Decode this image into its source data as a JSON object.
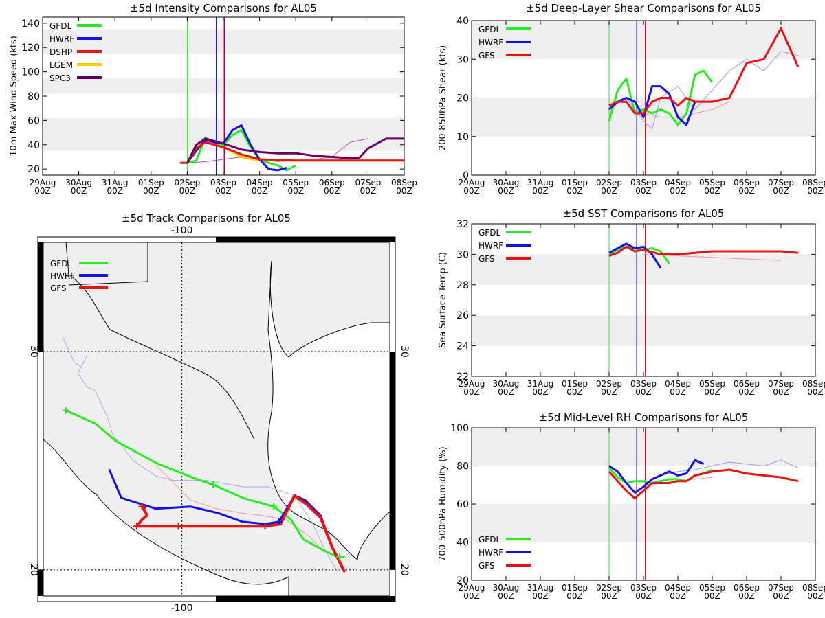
{
  "colors": {
    "GFDL": "#22ee22",
    "HWRF": "#1111ee",
    "DSHP": "#ee1111",
    "LGEM": "#ffcc00",
    "SPC3": "#660066",
    "GFS": "#ee1111"
  },
  "shared_x_ticks": [
    {
      "day": "29Aug",
      "hour": "00Z"
    },
    {
      "day": "30Aug",
      "hour": "00Z"
    },
    {
      "day": "31Aug",
      "hour": "00Z"
    },
    {
      "day": "01Sep",
      "hour": "00Z"
    },
    {
      "day": "02Sep",
      "hour": "00Z"
    },
    {
      "day": "03Sep",
      "hour": "00Z"
    },
    {
      "day": "04Sep",
      "hour": "00Z"
    },
    {
      "day": "05Sep",
      "hour": "00Z"
    },
    {
      "day": "06Sep",
      "hour": "00Z"
    },
    {
      "day": "07Sep",
      "hour": "00Z"
    },
    {
      "day": "08Sep",
      "hour": "00Z"
    }
  ],
  "chart_data": [
    {
      "id": "intensity",
      "type": "line",
      "title": "±5d Intensity Comparisons for AL05",
      "ylabel": "10m Max Wind Speed (kts)",
      "xlabel": "",
      "xlim": [
        0,
        10
      ],
      "ylim": [
        15,
        145
      ],
      "yticks": [
        20,
        40,
        60,
        80,
        100,
        120,
        140
      ],
      "bands": [
        [
          35,
          62
        ],
        [
          82,
          95
        ],
        [
          115,
          135
        ]
      ],
      "vlines": [
        {
          "x": 4.0,
          "color": "#22ee22"
        },
        {
          "x": 4.8,
          "color": "#1111ee"
        },
        {
          "x": 5.0,
          "color": "#ee1111"
        },
        {
          "x": 5.03,
          "color": "#660066"
        }
      ],
      "legend": [
        "GFDL",
        "HWRF",
        "DSHP",
        "LGEM",
        "SPC3"
      ],
      "series": [
        {
          "name": "observed",
          "color": "#cc44cc",
          "width": 1,
          "x": [
            4.0,
            4.5,
            5.0,
            5.5,
            6.0,
            6.5,
            7.0,
            7.5,
            8.0,
            8.5,
            9.0
          ],
          "y": [
            25,
            26,
            28,
            30,
            28,
            26,
            27,
            28,
            30,
            42,
            45
          ]
        },
        {
          "name": "LGEM",
          "color": "#ffcc00",
          "width": 3,
          "x": [
            4.0,
            4.25,
            4.5,
            4.75,
            5.0,
            5.5,
            6.0,
            7.0,
            8.0,
            10.0
          ],
          "y": [
            25,
            38,
            44,
            41,
            38,
            30,
            27,
            27,
            27,
            27
          ]
        },
        {
          "name": "GFDL",
          "color": "#22ee22",
          "width": 3,
          "x": [
            4.0,
            4.25,
            4.5,
            4.75,
            5.0,
            5.25,
            5.5,
            5.75,
            6.0,
            6.25,
            6.5,
            6.75,
            7.0
          ],
          "y": [
            25,
            27,
            46,
            42,
            40,
            48,
            52,
            38,
            28,
            25,
            23,
            19,
            23
          ]
        },
        {
          "name": "HWRF",
          "color": "#1111ee",
          "width": 3,
          "x": [
            4.0,
            4.25,
            4.5,
            4.75,
            5.0,
            5.25,
            5.5,
            5.75,
            6.0,
            6.25,
            6.5,
            6.75
          ],
          "y": [
            25,
            35,
            44,
            42,
            41,
            52,
            56,
            40,
            28,
            20,
            19,
            21
          ]
        },
        {
          "name": "DSHP",
          "color": "#ee1111",
          "width": 3,
          "x": [
            3.8,
            4.0,
            4.25,
            4.5,
            4.75,
            5.0,
            5.5,
            6.0,
            7.0,
            8.0,
            9.0,
            10.0
          ],
          "y": [
            25,
            25,
            37,
            42,
            40,
            38,
            32,
            28,
            27,
            27,
            27,
            27
          ]
        },
        {
          "name": "SPC3",
          "color": "#660066",
          "width": 3,
          "x": [
            4.0,
            4.25,
            4.5,
            4.75,
            5.0,
            5.5,
            6.0,
            6.5,
            7.0,
            7.5,
            8.0,
            8.5,
            8.75,
            9.0,
            9.5,
            10.0
          ],
          "y": [
            25,
            40,
            45,
            43,
            41,
            36,
            34,
            33,
            33,
            31,
            30,
            29,
            29,
            37,
            45,
            45
          ]
        }
      ]
    },
    {
      "id": "shear",
      "type": "line",
      "title": "±5d Deep-Layer Shear Comparisons for AL05",
      "ylabel": "200-850hPa Shear (kts)",
      "xlabel": "",
      "xlim": [
        0,
        10
      ],
      "ylim": [
        0,
        40
      ],
      "yticks": [
        0,
        10,
        20,
        30,
        40
      ],
      "bands": [
        [
          10,
          20
        ],
        [
          30,
          40
        ]
      ],
      "vlines": [
        {
          "x": 4.0,
          "color": "#22ee22"
        },
        {
          "x": 4.8,
          "color": "#1111ee"
        },
        {
          "x": 5.05,
          "color": "#ee1111"
        }
      ],
      "legend": [
        "GFDL",
        "HWRF",
        "GFS"
      ],
      "series": [
        {
          "name": "observed",
          "color": "#9999ee",
          "width": 1,
          "x": [
            4.0,
            4.5,
            5.0,
            5.25,
            5.5,
            6.0,
            6.5,
            7.0,
            7.5,
            8.0,
            8.5,
            9.0,
            9.5
          ],
          "y": [
            17,
            20,
            14,
            12,
            20,
            23,
            17,
            22,
            27,
            30,
            27,
            32,
            31
          ]
        },
        {
          "name": "GFS-faint",
          "color": "#ee9999",
          "width": 1,
          "x": [
            5.0,
            5.5,
            6.0,
            6.5,
            7.0,
            7.5
          ],
          "y": [
            16,
            15,
            15,
            16,
            17,
            19
          ]
        },
        {
          "name": "GFDL",
          "color": "#22ee22",
          "width": 3,
          "x": [
            4.0,
            4.25,
            4.5,
            4.75,
            5.0,
            5.25,
            5.5,
            5.75,
            6.0,
            6.25,
            6.5,
            6.75,
            7.0
          ],
          "y": [
            14,
            22,
            25,
            16,
            17,
            16,
            17,
            16,
            13,
            16,
            26,
            27,
            24
          ]
        },
        {
          "name": "HWRF",
          "color": "#1111ee",
          "width": 3,
          "x": [
            4.0,
            4.25,
            4.5,
            4.75,
            5.0,
            5.25,
            5.5,
            5.75,
            6.0,
            6.25,
            6.5
          ],
          "y": [
            17,
            19,
            20,
            19,
            15,
            23,
            23,
            21,
            15,
            13,
            19
          ]
        },
        {
          "name": "GFS",
          "color": "#ee1111",
          "width": 3,
          "x": [
            4.0,
            4.25,
            4.5,
            4.75,
            5.0,
            5.25,
            5.5,
            5.75,
            6.0,
            6.25,
            6.5,
            7.0,
            7.5,
            8.0,
            8.5,
            9.0,
            9.5
          ],
          "y": [
            18,
            19,
            19,
            16,
            16,
            19,
            20,
            20,
            18,
            20,
            19,
            19,
            20,
            29,
            30,
            38,
            28
          ]
        }
      ]
    },
    {
      "id": "sst",
      "type": "line",
      "title": "±5d SST Comparisons for AL05",
      "ylabel": "Sea Surface Temp (C)",
      "xlabel": "",
      "xlim": [
        0,
        10
      ],
      "ylim": [
        22,
        32
      ],
      "yticks": [
        22,
        24,
        26,
        28,
        30,
        32
      ],
      "bands": [
        [
          24,
          26
        ],
        [
          28,
          30
        ]
      ],
      "vlines": [
        {
          "x": 4.0,
          "color": "#22ee22"
        },
        {
          "x": 4.8,
          "color": "#1111ee"
        },
        {
          "x": 5.05,
          "color": "#ee1111"
        }
      ],
      "legend": [
        "GFDL",
        "HWRF",
        "GFS"
      ],
      "series": [
        {
          "name": "GFS-faint",
          "color": "#ee9999",
          "width": 1,
          "x": [
            5.0,
            6.0,
            7.0,
            8.0,
            9.0
          ],
          "y": [
            30.0,
            29.9,
            29.8,
            29.7,
            29.6
          ]
        },
        {
          "name": "GFDL",
          "color": "#22ee22",
          "width": 3,
          "x": [
            4.0,
            4.25,
            4.5,
            4.75,
            5.0,
            5.25,
            5.5,
            5.75
          ],
          "y": [
            30.0,
            30.3,
            30.5,
            30.4,
            30.3,
            30.4,
            30.2,
            29.4
          ]
        },
        {
          "name": "HWRF",
          "color": "#1111ee",
          "width": 3,
          "x": [
            4.0,
            4.25,
            4.5,
            4.75,
            5.0,
            5.25,
            5.5
          ],
          "y": [
            30.1,
            30.4,
            30.7,
            30.4,
            30.5,
            30.0,
            29.1
          ]
        },
        {
          "name": "GFS",
          "color": "#ee1111",
          "width": 3,
          "x": [
            4.0,
            4.25,
            4.5,
            4.75,
            5.0,
            5.5,
            6.0,
            6.5,
            7.0,
            7.5,
            8.0,
            8.5,
            9.0,
            9.5
          ],
          "y": [
            29.9,
            30.1,
            30.5,
            30.2,
            30.3,
            30.0,
            30.0,
            30.1,
            30.2,
            30.2,
            30.2,
            30.2,
            30.2,
            30.1
          ]
        }
      ]
    },
    {
      "id": "rh",
      "type": "line",
      "title": "±5d Mid-Level RH Comparisons for AL05",
      "ylabel": "700-500hPa Humidity (%)",
      "xlabel": "",
      "xlim": [
        0,
        10
      ],
      "ylim": [
        20,
        100
      ],
      "yticks": [
        20,
        40,
        60,
        80,
        100
      ],
      "bands": [
        [
          40,
          60
        ],
        [
          80,
          100
        ]
      ],
      "vlines": [
        {
          "x": 4.0,
          "color": "#22ee22"
        },
        {
          "x": 4.8,
          "color": "#1111ee"
        },
        {
          "x": 5.05,
          "color": "#ee1111"
        }
      ],
      "legend": [
        "GFDL",
        "HWRF",
        "GFS"
      ],
      "series": [
        {
          "name": "observed",
          "color": "#9999ee",
          "width": 1,
          "x": [
            5.5,
            6.0,
            6.5,
            7.0,
            7.5,
            8.0,
            8.5,
            9.0,
            9.5
          ],
          "y": [
            75,
            77,
            78,
            80,
            82,
            81,
            80,
            83,
            79
          ]
        },
        {
          "name": "GFS-faint",
          "color": "#ee9999",
          "width": 1,
          "x": [
            5.0,
            5.5,
            6.0,
            6.5,
            7.0
          ],
          "y": [
            70,
            71,
            72,
            73,
            74
          ]
        },
        {
          "name": "GFDL",
          "color": "#22ee22",
          "width": 3,
          "x": [
            4.0,
            4.25,
            4.5,
            4.75,
            5.0,
            5.25,
            5.5,
            5.75,
            6.0,
            6.25,
            6.5,
            6.75,
            7.0
          ],
          "y": [
            79,
            74,
            71,
            72,
            72,
            71,
            72,
            73,
            73,
            72,
            75,
            76,
            78
          ]
        },
        {
          "name": "HWRF",
          "color": "#1111ee",
          "width": 3,
          "x": [
            4.0,
            4.25,
            4.5,
            4.75,
            5.0,
            5.25,
            5.5,
            5.75,
            6.0,
            6.25,
            6.5,
            6.75
          ],
          "y": [
            80,
            77,
            71,
            66,
            69,
            73,
            75,
            77,
            75,
            76,
            83,
            81
          ]
        },
        {
          "name": "GFS",
          "color": "#ee1111",
          "width": 3,
          "x": [
            4.0,
            4.25,
            4.5,
            4.75,
            5.0,
            5.25,
            5.5,
            5.75,
            6.0,
            6.25,
            6.5,
            7.0,
            7.5,
            8.0,
            8.5,
            9.0,
            9.5
          ],
          "y": [
            77,
            72,
            67,
            63,
            67,
            71,
            71,
            71,
            72,
            72,
            75,
            77,
            78,
            76,
            75,
            74,
            72
          ]
        }
      ]
    },
    {
      "id": "track",
      "type": "line",
      "title": "±5d Track Comparisons for AL05",
      "xlim": [
        -108,
        -88
      ],
      "ylim": [
        18.8,
        35
      ],
      "lon_label": "-100",
      "lat_labels": [
        "30",
        "20"
      ],
      "legend": [
        "GFDL",
        "HWRF",
        "GFS"
      ],
      "series": [
        {
          "name": "observed",
          "color": "#aaaaee",
          "width": 1,
          "lon": [
            -106.9,
            -106.2,
            -105.8,
            -105.5,
            -106.0,
            -105.5,
            -105.0,
            -104.3,
            -104.0,
            -102.8,
            -101.5,
            -100.5,
            -98.6,
            -96.5,
            -95.0,
            -93.5,
            -92.5,
            -91.8,
            -91.0
          ],
          "lat": [
            30.7,
            29.5,
            29.3,
            29.8,
            29.0,
            28.4,
            28.2,
            27.0,
            26.2,
            25.0,
            24.3,
            24.1,
            24.1,
            23.8,
            23.8,
            23.4,
            22.2,
            21.0,
            19.9
          ]
        },
        {
          "name": "GFS-faint",
          "color": "#ee9999",
          "width": 1,
          "lon": [
            -101.5,
            -100.5,
            -99.5,
            -98.0,
            -96.5,
            -95.5,
            -94.0,
            -92.6,
            -91.8
          ],
          "lat": [
            24.8,
            24.0,
            23.2,
            22.8,
            22.6,
            22.5,
            22.3,
            21.5,
            20.8
          ]
        },
        {
          "name": "GFDL",
          "color": "#22ee22",
          "width": 3,
          "lon": [
            -106.7,
            -105.0,
            -103.8,
            -101.5,
            -99.3,
            -98.2,
            -96.5,
            -94.7,
            -93.7,
            -93.0,
            -91.6,
            -91.0,
            -90.6
          ],
          "lat": [
            27.3,
            26.7,
            25.9,
            24.9,
            24.2,
            23.9,
            23.3,
            22.9,
            22.3,
            21.4,
            20.8,
            20.6,
            20.6
          ]
        },
        {
          "name": "HWRF",
          "color": "#1111ee",
          "width": 3,
          "lon": [
            -104.2,
            -103.5,
            -101.5,
            -99.5,
            -97.9,
            -96.5,
            -95.2,
            -94.4,
            -93.5,
            -92.9,
            -92.0,
            -91.3,
            -90.7
          ],
          "lat": [
            24.6,
            23.3,
            22.8,
            22.9,
            22.6,
            22.2,
            22.1,
            22.2,
            23.4,
            23.2,
            22.5,
            21.0,
            20.0
          ]
        },
        {
          "name": "GFS",
          "color": "#ee1111",
          "width": 4,
          "lon": [
            -102.1,
            -102.3,
            -102.0,
            -102.3,
            -102.6,
            -102.6,
            -100.2,
            -98.2,
            -96.5,
            -95.2,
            -94.3,
            -93.5,
            -92.8,
            -92.0,
            -91.3,
            -90.6
          ],
          "lat": [
            22.8,
            22.9,
            22.5,
            22.3,
            22.0,
            22.0,
            22.0,
            22.0,
            22.0,
            22.0,
            22.1,
            23.4,
            23.0,
            22.4,
            21.0,
            19.9
          ]
        }
      ],
      "markers": [
        {
          "color": "#22ee22",
          "lon": [
            -106.7,
            -98.2,
            -94.7,
            -90.9
          ]
        },
        {
          "color": "#1111ee",
          "lon": [
            -94.4
          ],
          "lat": [
            22.2
          ]
        },
        {
          "color": "#ee1111",
          "lon": [
            -102.6,
            -100.2,
            -95.2,
            -102.3
          ],
          "lat": [
            22.0,
            22.0,
            22.0,
            22.9
          ]
        }
      ],
      "marker_lats": [
        27.3,
        23.9,
        22.9,
        20.6
      ]
    }
  ]
}
